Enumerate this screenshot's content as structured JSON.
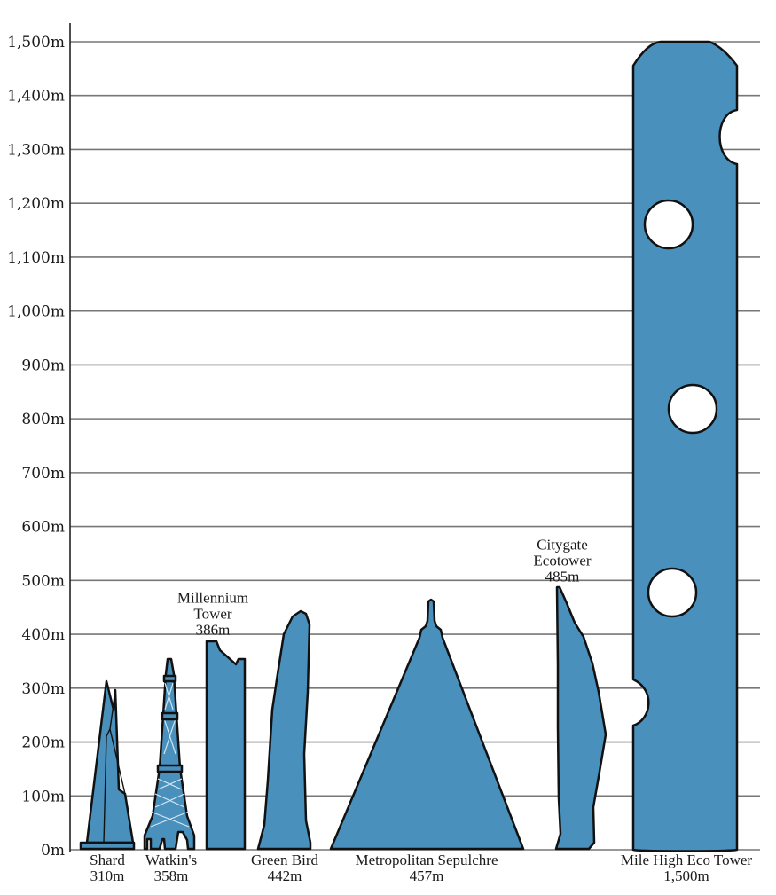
{
  "chart_data": {
    "type": "bar",
    "title": "",
    "xlabel": "",
    "ylabel": "",
    "ylim": [
      0,
      1500
    ],
    "y_ticks": [
      "0m",
      "100m",
      "200m",
      "300m",
      "400m",
      "500m",
      "600m",
      "700m",
      "800m",
      "900m",
      "1,000m",
      "1,100m",
      "1,200m",
      "1,300m",
      "1,400m",
      "1,500m"
    ],
    "y_tick_values": [
      0,
      100,
      200,
      300,
      400,
      500,
      600,
      700,
      800,
      900,
      1000,
      1100,
      1200,
      1300,
      1400,
      1500
    ],
    "grid": true,
    "colors": {
      "building": "#4a90bd",
      "outline": "#111111",
      "grid": "#777777"
    },
    "buildings": [
      {
        "name": "Shard",
        "height_label": "310m",
        "value": 310,
        "label_position": "below"
      },
      {
        "name": "Watkin's",
        "height_label": "358m",
        "value": 358,
        "label_position": "below"
      },
      {
        "name": "Millennium Tower",
        "name_lines": [
          "Millennium",
          "Tower"
        ],
        "height_label": "386m",
        "value": 386,
        "label_position": "above"
      },
      {
        "name": "Green Bird",
        "height_label": "442m",
        "value": 442,
        "label_position": "below"
      },
      {
        "name": "Metropolitan Sepulchre",
        "height_label": "457m",
        "value": 457,
        "label_position": "below"
      },
      {
        "name": "Citygate Ecotower",
        "name_lines": [
          "Citygate",
          "Ecotower"
        ],
        "height_label": "485m",
        "value": 485,
        "label_position": "above"
      },
      {
        "name": "Mile High Eco Tower",
        "height_label": "1,500m",
        "value": 1500,
        "label_position": "below"
      }
    ]
  }
}
